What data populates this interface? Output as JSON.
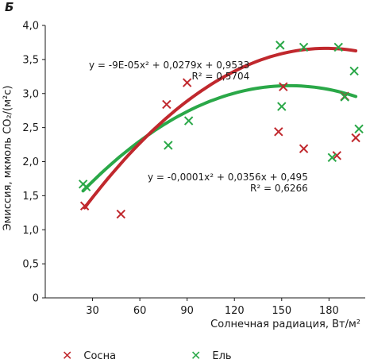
{
  "panel_letter": "Б",
  "chart_data": {
    "type": "scatter",
    "title": "",
    "xlabel": "Солнечная радиация, Вт/м²",
    "ylabel": "Эмиссия, мкмоль CO₂/(м²с)",
    "xlim": [
      0,
      203
    ],
    "ylim": [
      0,
      4
    ],
    "x_ticks": [
      "30",
      "60",
      "90",
      "120",
      "150",
      "180"
    ],
    "x_tick_values": [
      30,
      60,
      90,
      120,
      150,
      180
    ],
    "y_ticks": [
      "0",
      "0,5",
      "1,0",
      "1,5",
      "2,0",
      "2,5",
      "3,0",
      "3,5",
      "4,0"
    ],
    "y_tick_values": [
      0,
      0.5,
      1.0,
      1.5,
      2.0,
      2.5,
      3.0,
      3.5,
      4.0
    ],
    "grid": false,
    "legend_position": "bottom",
    "series": [
      {
        "name": "Сосна",
        "color": "#c0282d",
        "points": [
          [
            25,
            1.35
          ],
          [
            48,
            1.23
          ],
          [
            77,
            2.84
          ],
          [
            90,
            3.16
          ],
          [
            148,
            2.44
          ],
          [
            151,
            3.1
          ],
          [
            164,
            2.19
          ],
          [
            185,
            2.09
          ],
          [
            190,
            2.96
          ],
          [
            197,
            2.35
          ]
        ],
        "trend": {
          "a": -0.0001,
          "b": 0.0356,
          "c": 0.495,
          "x_range": [
            25,
            197
          ],
          "equation": "y = -0,0001x² + 0,0356x + 0,495",
          "r2": "R² = 0,6266"
        }
      },
      {
        "name": "Ель",
        "color": "#2aa848",
        "points": [
          [
            24,
            1.67
          ],
          [
            26,
            1.63
          ],
          [
            78,
            2.24
          ],
          [
            91,
            2.6
          ],
          [
            149,
            3.71
          ],
          [
            150,
            2.81
          ],
          [
            164,
            3.68
          ],
          [
            182,
            2.06
          ],
          [
            186,
            3.68
          ],
          [
            190,
            2.95
          ],
          [
            196,
            3.33
          ],
          [
            199,
            2.48
          ]
        ],
        "trend": {
          "a": -9e-05,
          "b": 0.0279,
          "c": 0.9533,
          "x_range": [
            24,
            197
          ],
          "equation": "y = -9E-05x² + 0,0279x + 0,9533",
          "r2": "R² = 0,5704"
        }
      }
    ]
  }
}
